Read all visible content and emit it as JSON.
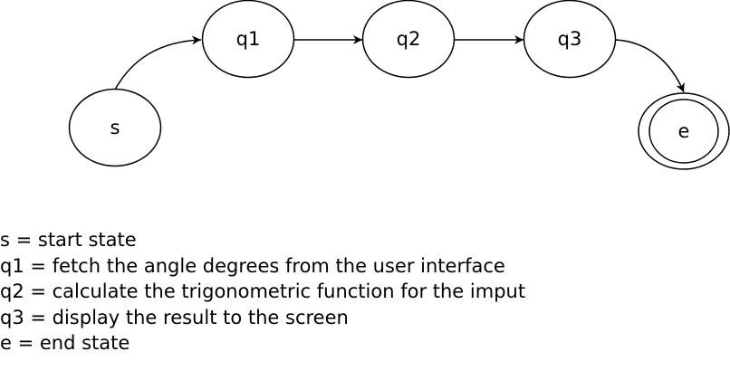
{
  "diagram": {
    "states": {
      "s": {
        "label": "s"
      },
      "q1": {
        "label": "q1"
      },
      "q2": {
        "label": "q2"
      },
      "q3": {
        "label": "q3"
      },
      "e": {
        "label": "e",
        "accepting": true
      }
    },
    "transitions": [
      {
        "from": "s",
        "to": "q1"
      },
      {
        "from": "q1",
        "to": "q2"
      },
      {
        "from": "q2",
        "to": "q3"
      },
      {
        "from": "q3",
        "to": "e"
      }
    ]
  },
  "legend": {
    "lines": [
      "s = start state",
      "q1 = fetch the angle degrees from the user interface",
      "q2 = calculate the trigonometric function for the imput",
      "q3 = display the result to the screen",
      "e = end state"
    ]
  },
  "colors": {
    "stroke": "#000000",
    "fill": "#ffffff",
    "text": "#000000"
  }
}
